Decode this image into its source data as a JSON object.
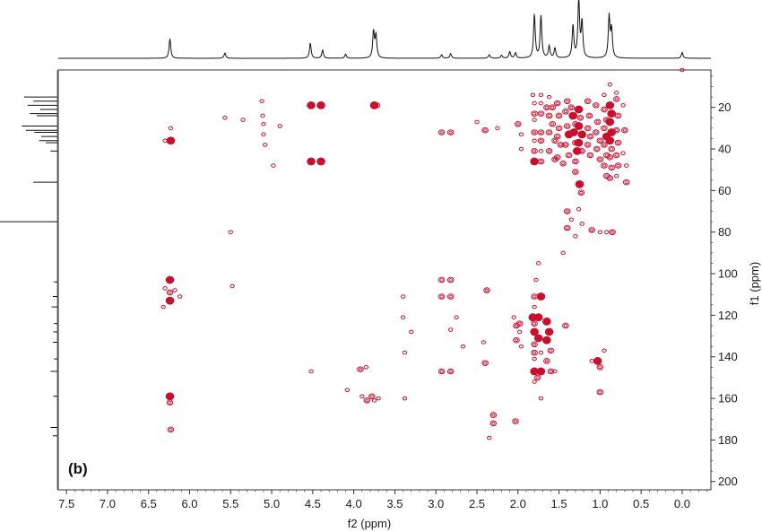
{
  "chart_data": {
    "type": "scatter",
    "subtype": "2D NMR contour map (HMBC) with 1D projections",
    "panel_label": "(b)",
    "xlabel": "f2 (ppm)",
    "ylabel": "f1 (ppm)",
    "x_axis": {
      "range": [
        7.6,
        -0.35
      ],
      "reversed": true,
      "ticks": [
        7.5,
        7.0,
        6.5,
        6.0,
        5.5,
        5.0,
        4.5,
        4.0,
        3.5,
        3.0,
        2.5,
        2.0,
        1.5,
        1.0,
        0.5,
        0.0
      ],
      "tick_labels": [
        "7.5",
        "7.0",
        "6.5",
        "6.0",
        "5.5",
        "5.0",
        "4.5",
        "4.0",
        "3.5",
        "3.0",
        "2.5",
        "2.0",
        "1.5",
        "1.0",
        "0.5",
        "0.0"
      ]
    },
    "y_axis": {
      "range": [
        2,
        204
      ],
      "position": "right",
      "reversed": true,
      "ticks": [
        20,
        40,
        60,
        80,
        100,
        120,
        140,
        160,
        180,
        200
      ],
      "tick_labels": [
        "20",
        "40",
        "60",
        "80",
        "100",
        "120",
        "140",
        "160",
        "180",
        "200"
      ]
    },
    "grid": false,
    "colors": {
      "contour": "#c8102e",
      "projection": "#111111",
      "axis": "#333333"
    },
    "top_projection_peaks": [
      {
        "x": 6.24,
        "h": 0.33
      },
      {
        "x": 5.57,
        "h": 0.09
      },
      {
        "x": 4.53,
        "h": 0.26
      },
      {
        "x": 4.38,
        "h": 0.14
      },
      {
        "x": 4.1,
        "h": 0.07
      },
      {
        "x": 3.76,
        "h": 0.45
      },
      {
        "x": 3.73,
        "h": 0.38
      },
      {
        "x": 2.93,
        "h": 0.06
      },
      {
        "x": 2.82,
        "h": 0.08
      },
      {
        "x": 2.35,
        "h": 0.06
      },
      {
        "x": 2.2,
        "h": 0.05
      },
      {
        "x": 2.1,
        "h": 0.11
      },
      {
        "x": 2.03,
        "h": 0.09
      },
      {
        "x": 1.8,
        "h": 0.74
      },
      {
        "x": 1.72,
        "h": 0.71
      },
      {
        "x": 1.62,
        "h": 0.2
      },
      {
        "x": 1.55,
        "h": 0.17
      },
      {
        "x": 1.33,
        "h": 0.55
      },
      {
        "x": 1.26,
        "h": 1.0
      },
      {
        "x": 1.22,
        "h": 0.6
      },
      {
        "x": 0.89,
        "h": 0.7
      },
      {
        "x": 0.86,
        "h": 0.48
      },
      {
        "x": 0.0,
        "h": 0.1
      }
    ],
    "left_projection_peaks": [
      {
        "y": 15,
        "h": 0.58
      },
      {
        "y": 17,
        "h": 0.42
      },
      {
        "y": 19,
        "h": 0.52
      },
      {
        "y": 21,
        "h": 0.3
      },
      {
        "y": 23,
        "h": 0.48
      },
      {
        "y": 24,
        "h": 0.36
      },
      {
        "y": 29,
        "h": 0.62
      },
      {
        "y": 31,
        "h": 0.55
      },
      {
        "y": 32,
        "h": 0.4
      },
      {
        "y": 34,
        "h": 0.28
      },
      {
        "y": 36,
        "h": 0.32
      },
      {
        "y": 37,
        "h": 0.2
      },
      {
        "y": 41,
        "h": 0.12
      },
      {
        "y": 56,
        "h": 0.42
      },
      {
        "y": 75,
        "h": 1.0
      },
      {
        "y": 104,
        "h": 0.06
      },
      {
        "y": 111,
        "h": 0.08
      },
      {
        "y": 116,
        "h": 0.1
      },
      {
        "y": 124,
        "h": 0.06
      },
      {
        "y": 128,
        "h": 0.07
      },
      {
        "y": 133,
        "h": 0.08
      },
      {
        "y": 141,
        "h": 0.06
      },
      {
        "y": 147,
        "h": 0.12
      },
      {
        "y": 159,
        "h": 0.07
      },
      {
        "y": 174,
        "h": 0.12
      },
      {
        "y": 178,
        "h": 0.08
      }
    ],
    "cross_peaks": [
      {
        "x": 6.23,
        "y": 36,
        "s": 3
      },
      {
        "x": 6.3,
        "y": 36,
        "s": 1
      },
      {
        "x": 6.23,
        "y": 30,
        "s": 1
      },
      {
        "x": 6.24,
        "y": 103,
        "s": 3
      },
      {
        "x": 6.24,
        "y": 109,
        "s": 2
      },
      {
        "x": 6.24,
        "y": 113,
        "s": 3
      },
      {
        "x": 6.3,
        "y": 107,
        "s": 1
      },
      {
        "x": 6.18,
        "y": 108,
        "s": 1
      },
      {
        "x": 6.32,
        "y": 116,
        "s": 1
      },
      {
        "x": 6.12,
        "y": 111,
        "s": 1
      },
      {
        "x": 6.24,
        "y": 159,
        "s": 3
      },
      {
        "x": 6.24,
        "y": 162,
        "s": 2
      },
      {
        "x": 6.23,
        "y": 175,
        "s": 2
      },
      {
        "x": 5.57,
        "y": 25,
        "s": 1
      },
      {
        "x": 5.5,
        "y": 80,
        "s": 1
      },
      {
        "x": 5.48,
        "y": 106,
        "s": 1
      },
      {
        "x": 5.35,
        "y": 26,
        "s": 1
      },
      {
        "x": 5.12,
        "y": 17,
        "s": 1
      },
      {
        "x": 5.11,
        "y": 24,
        "s": 1
      },
      {
        "x": 5.1,
        "y": 28,
        "s": 1
      },
      {
        "x": 5.1,
        "y": 33,
        "s": 1
      },
      {
        "x": 5.08,
        "y": 38,
        "s": 1
      },
      {
        "x": 4.98,
        "y": 48,
        "s": 1
      },
      {
        "x": 4.9,
        "y": 29,
        "s": 1
      },
      {
        "x": 4.52,
        "y": 19,
        "s": 3
      },
      {
        "x": 4.4,
        "y": 19,
        "s": 3
      },
      {
        "x": 4.52,
        "y": 46,
        "s": 3
      },
      {
        "x": 4.4,
        "y": 46,
        "s": 3
      },
      {
        "x": 4.52,
        "y": 147,
        "s": 1
      },
      {
        "x": 3.75,
        "y": 19,
        "s": 3
      },
      {
        "x": 3.72,
        "y": 19,
        "s": 2
      },
      {
        "x": 3.92,
        "y": 146,
        "s": 2
      },
      {
        "x": 3.85,
        "y": 145,
        "s": 1
      },
      {
        "x": 4.08,
        "y": 156,
        "s": 1
      },
      {
        "x": 3.9,
        "y": 159,
        "s": 1
      },
      {
        "x": 3.84,
        "y": 161,
        "s": 2
      },
      {
        "x": 3.78,
        "y": 159,
        "s": 2
      },
      {
        "x": 3.75,
        "y": 161,
        "s": 1
      },
      {
        "x": 3.7,
        "y": 160,
        "s": 1
      },
      {
        "x": 3.4,
        "y": 111,
        "s": 1
      },
      {
        "x": 3.4,
        "y": 121,
        "s": 1
      },
      {
        "x": 3.38,
        "y": 138,
        "s": 1
      },
      {
        "x": 3.38,
        "y": 160,
        "s": 1
      },
      {
        "x": 3.3,
        "y": 128,
        "s": 1
      },
      {
        "x": 2.93,
        "y": 32,
        "s": 2
      },
      {
        "x": 2.82,
        "y": 32,
        "s": 2
      },
      {
        "x": 2.93,
        "y": 103,
        "s": 2
      },
      {
        "x": 2.82,
        "y": 103,
        "s": 2
      },
      {
        "x": 2.93,
        "y": 111,
        "s": 2
      },
      {
        "x": 2.82,
        "y": 111,
        "s": 2
      },
      {
        "x": 2.93,
        "y": 147,
        "s": 2
      },
      {
        "x": 2.82,
        "y": 147,
        "s": 2
      },
      {
        "x": 2.82,
        "y": 127,
        "s": 1
      },
      {
        "x": 2.75,
        "y": 121,
        "s": 1
      },
      {
        "x": 2.67,
        "y": 135,
        "s": 1
      },
      {
        "x": 2.5,
        "y": 27,
        "s": 1
      },
      {
        "x": 2.4,
        "y": 31,
        "s": 2
      },
      {
        "x": 2.38,
        "y": 108,
        "s": 2
      },
      {
        "x": 2.4,
        "y": 143,
        "s": 2
      },
      {
        "x": 2.3,
        "y": 168,
        "s": 2
      },
      {
        "x": 2.3,
        "y": 172,
        "s": 2
      },
      {
        "x": 2.35,
        "y": 179,
        "s": 1
      },
      {
        "x": 2.25,
        "y": 30,
        "s": 1
      },
      {
        "x": 2.42,
        "y": 133,
        "s": 1
      },
      {
        "x": 2.05,
        "y": 121,
        "s": 1
      },
      {
        "x": 2.03,
        "y": 171,
        "s": 2
      },
      {
        "x": 2.02,
        "y": 125,
        "s": 2
      },
      {
        "x": 1.98,
        "y": 128,
        "s": 1
      },
      {
        "x": 2.02,
        "y": 132,
        "s": 2
      },
      {
        "x": 1.96,
        "y": 135,
        "s": 1
      },
      {
        "x": 1.98,
        "y": 124,
        "s": 2
      },
      {
        "x": 2.0,
        "y": 28,
        "s": 2
      },
      {
        "x": 1.96,
        "y": 40,
        "s": 1
      },
      {
        "x": 1.96,
        "y": 33,
        "s": 1
      },
      {
        "x": 1.82,
        "y": 14,
        "s": 1
      },
      {
        "x": 1.72,
        "y": 14,
        "s": 1
      },
      {
        "x": 1.8,
        "y": 18,
        "s": 1
      },
      {
        "x": 1.72,
        "y": 18,
        "s": 1
      },
      {
        "x": 1.8,
        "y": 23,
        "s": 2
      },
      {
        "x": 1.72,
        "y": 23,
        "s": 2
      },
      {
        "x": 1.8,
        "y": 26,
        "s": 1
      },
      {
        "x": 1.8,
        "y": 32,
        "s": 2
      },
      {
        "x": 1.72,
        "y": 32,
        "s": 2
      },
      {
        "x": 1.8,
        "y": 36,
        "s": 1
      },
      {
        "x": 1.72,
        "y": 36,
        "s": 2
      },
      {
        "x": 1.8,
        "y": 41,
        "s": 2
      },
      {
        "x": 1.72,
        "y": 41,
        "s": 1
      },
      {
        "x": 1.8,
        "y": 46,
        "s": 3
      },
      {
        "x": 1.72,
        "y": 46,
        "s": 2
      },
      {
        "x": 1.8,
        "y": 111,
        "s": 2
      },
      {
        "x": 1.72,
        "y": 111,
        "s": 3
      },
      {
        "x": 1.78,
        "y": 103,
        "s": 1
      },
      {
        "x": 1.75,
        "y": 95,
        "s": 1
      },
      {
        "x": 1.8,
        "y": 116,
        "s": 1
      },
      {
        "x": 1.82,
        "y": 121,
        "s": 3
      },
      {
        "x": 1.75,
        "y": 121,
        "s": 3
      },
      {
        "x": 1.8,
        "y": 124,
        "s": 2
      },
      {
        "x": 1.8,
        "y": 128,
        "s": 3
      },
      {
        "x": 1.75,
        "y": 131,
        "s": 3
      },
      {
        "x": 1.8,
        "y": 134,
        "s": 2
      },
      {
        "x": 1.8,
        "y": 138,
        "s": 2
      },
      {
        "x": 1.72,
        "y": 138,
        "s": 1
      },
      {
        "x": 1.8,
        "y": 141,
        "s": 1
      },
      {
        "x": 1.8,
        "y": 147,
        "s": 3
      },
      {
        "x": 1.72,
        "y": 147,
        "s": 3
      },
      {
        "x": 1.76,
        "y": 150,
        "s": 2
      },
      {
        "x": 1.72,
        "y": 160,
        "s": 1
      },
      {
        "x": 1.8,
        "y": 152,
        "s": 1
      },
      {
        "x": 1.65,
        "y": 123,
        "s": 3
      },
      {
        "x": 1.62,
        "y": 128,
        "s": 3
      },
      {
        "x": 1.65,
        "y": 132,
        "s": 3
      },
      {
        "x": 1.6,
        "y": 137,
        "s": 2
      },
      {
        "x": 1.65,
        "y": 142,
        "s": 2
      },
      {
        "x": 1.6,
        "y": 147,
        "s": 2
      },
      {
        "x": 1.55,
        "y": 147,
        "s": 1
      },
      {
        "x": 1.65,
        "y": 20,
        "s": 2
      },
      {
        "x": 1.58,
        "y": 20,
        "s": 2
      },
      {
        "x": 1.62,
        "y": 24,
        "s": 2
      },
      {
        "x": 1.58,
        "y": 28,
        "s": 2
      },
      {
        "x": 1.62,
        "y": 32,
        "s": 2
      },
      {
        "x": 1.55,
        "y": 36,
        "s": 2
      },
      {
        "x": 1.62,
        "y": 41,
        "s": 2
      },
      {
        "x": 1.55,
        "y": 45,
        "s": 2
      },
      {
        "x": 1.62,
        "y": 15,
        "s": 1
      },
      {
        "x": 1.52,
        "y": 18,
        "s": 2
      },
      {
        "x": 1.5,
        "y": 24,
        "s": 2
      },
      {
        "x": 1.5,
        "y": 30,
        "s": 2
      },
      {
        "x": 1.52,
        "y": 34,
        "s": 2
      },
      {
        "x": 1.48,
        "y": 38,
        "s": 2
      },
      {
        "x": 1.52,
        "y": 44,
        "s": 2
      },
      {
        "x": 1.45,
        "y": 47,
        "s": 2
      },
      {
        "x": 1.4,
        "y": 17,
        "s": 2
      },
      {
        "x": 1.42,
        "y": 22,
        "s": 2
      },
      {
        "x": 1.4,
        "y": 29,
        "s": 2
      },
      {
        "x": 1.38,
        "y": 33,
        "s": 3
      },
      {
        "x": 1.42,
        "y": 38,
        "s": 2
      },
      {
        "x": 1.38,
        "y": 43,
        "s": 2
      },
      {
        "x": 1.42,
        "y": 125,
        "s": 2
      },
      {
        "x": 1.4,
        "y": 70,
        "s": 2
      },
      {
        "x": 1.4,
        "y": 78,
        "s": 2
      },
      {
        "x": 1.45,
        "y": 90,
        "s": 1
      },
      {
        "x": 1.35,
        "y": 20,
        "s": 2
      },
      {
        "x": 1.33,
        "y": 24,
        "s": 3
      },
      {
        "x": 1.3,
        "y": 28,
        "s": 2
      },
      {
        "x": 1.32,
        "y": 32,
        "s": 3
      },
      {
        "x": 1.3,
        "y": 37,
        "s": 2
      },
      {
        "x": 1.28,
        "y": 41,
        "s": 3
      },
      {
        "x": 1.3,
        "y": 46,
        "s": 2
      },
      {
        "x": 1.3,
        "y": 51,
        "s": 2
      },
      {
        "x": 1.35,
        "y": 74,
        "s": 1
      },
      {
        "x": 1.3,
        "y": 82,
        "s": 1
      },
      {
        "x": 1.26,
        "y": 21,
        "s": 3
      },
      {
        "x": 1.24,
        "y": 25,
        "s": 2
      },
      {
        "x": 1.26,
        "y": 29,
        "s": 3
      },
      {
        "x": 1.22,
        "y": 33,
        "s": 3
      },
      {
        "x": 1.26,
        "y": 37,
        "s": 3
      },
      {
        "x": 1.22,
        "y": 41,
        "s": 2
      },
      {
        "x": 1.25,
        "y": 57,
        "s": 3
      },
      {
        "x": 1.23,
        "y": 61,
        "s": 2
      },
      {
        "x": 1.26,
        "y": 69,
        "s": 1
      },
      {
        "x": 1.22,
        "y": 76,
        "s": 1
      },
      {
        "x": 1.15,
        "y": 17,
        "s": 2
      },
      {
        "x": 1.13,
        "y": 24,
        "s": 2
      },
      {
        "x": 1.15,
        "y": 30,
        "s": 2
      },
      {
        "x": 1.12,
        "y": 34,
        "s": 2
      },
      {
        "x": 1.15,
        "y": 38,
        "s": 2
      },
      {
        "x": 1.12,
        "y": 43,
        "s": 2
      },
      {
        "x": 1.1,
        "y": 79,
        "s": 2
      },
      {
        "x": 1.1,
        "y": 142,
        "s": 1
      },
      {
        "x": 1.05,
        "y": 19,
        "s": 2
      },
      {
        "x": 1.03,
        "y": 27,
        "s": 2
      },
      {
        "x": 1.05,
        "y": 32,
        "s": 2
      },
      {
        "x": 1.0,
        "y": 36,
        "s": 2
      },
      {
        "x": 1.04,
        "y": 40,
        "s": 2
      },
      {
        "x": 1.0,
        "y": 45,
        "s": 2
      },
      {
        "x": 1.03,
        "y": 142,
        "s": 3
      },
      {
        "x": 1.0,
        "y": 145,
        "s": 2
      },
      {
        "x": 1.0,
        "y": 157,
        "s": 2
      },
      {
        "x": 1.0,
        "y": 80,
        "s": 1
      },
      {
        "x": 0.95,
        "y": 14,
        "s": 1
      },
      {
        "x": 0.95,
        "y": 21,
        "s": 2
      },
      {
        "x": 0.92,
        "y": 26,
        "s": 2
      },
      {
        "x": 0.95,
        "y": 30,
        "s": 2
      },
      {
        "x": 0.92,
        "y": 34,
        "s": 3
      },
      {
        "x": 0.95,
        "y": 38,
        "s": 2
      },
      {
        "x": 0.92,
        "y": 43,
        "s": 2
      },
      {
        "x": 0.95,
        "y": 48,
        "s": 2
      },
      {
        "x": 0.92,
        "y": 53,
        "s": 2
      },
      {
        "x": 0.95,
        "y": 137,
        "s": 1
      },
      {
        "x": 0.88,
        "y": 19,
        "s": 3
      },
      {
        "x": 0.86,
        "y": 23,
        "s": 3
      },
      {
        "x": 0.88,
        "y": 27,
        "s": 3
      },
      {
        "x": 0.86,
        "y": 32,
        "s": 3
      },
      {
        "x": 0.88,
        "y": 36,
        "s": 3
      },
      {
        "x": 0.86,
        "y": 40,
        "s": 2
      },
      {
        "x": 0.88,
        "y": 44,
        "s": 2
      },
      {
        "x": 0.86,
        "y": 49,
        "s": 2
      },
      {
        "x": 0.88,
        "y": 54,
        "s": 2
      },
      {
        "x": 0.85,
        "y": 80,
        "s": 2
      },
      {
        "x": 0.92,
        "y": 80,
        "s": 1
      },
      {
        "x": 0.88,
        "y": 9,
        "s": 1
      },
      {
        "x": 0.8,
        "y": 16,
        "s": 2
      },
      {
        "x": 0.78,
        "y": 24,
        "s": 2
      },
      {
        "x": 0.8,
        "y": 31,
        "s": 2
      },
      {
        "x": 0.78,
        "y": 37,
        "s": 2
      },
      {
        "x": 0.8,
        "y": 43,
        "s": 2
      },
      {
        "x": 0.78,
        "y": 48,
        "s": 2
      },
      {
        "x": 0.8,
        "y": 53,
        "s": 1
      },
      {
        "x": 0.8,
        "y": 13,
        "s": 1
      },
      {
        "x": 0.72,
        "y": 19,
        "s": 1
      },
      {
        "x": 0.7,
        "y": 31,
        "s": 2
      },
      {
        "x": 0.72,
        "y": 42,
        "s": 1
      },
      {
        "x": 0.68,
        "y": 48,
        "s": 1
      },
      {
        "x": 0.68,
        "y": 56,
        "s": 2
      },
      {
        "x": 0.0,
        "y": 2,
        "s": 1
      }
    ]
  }
}
